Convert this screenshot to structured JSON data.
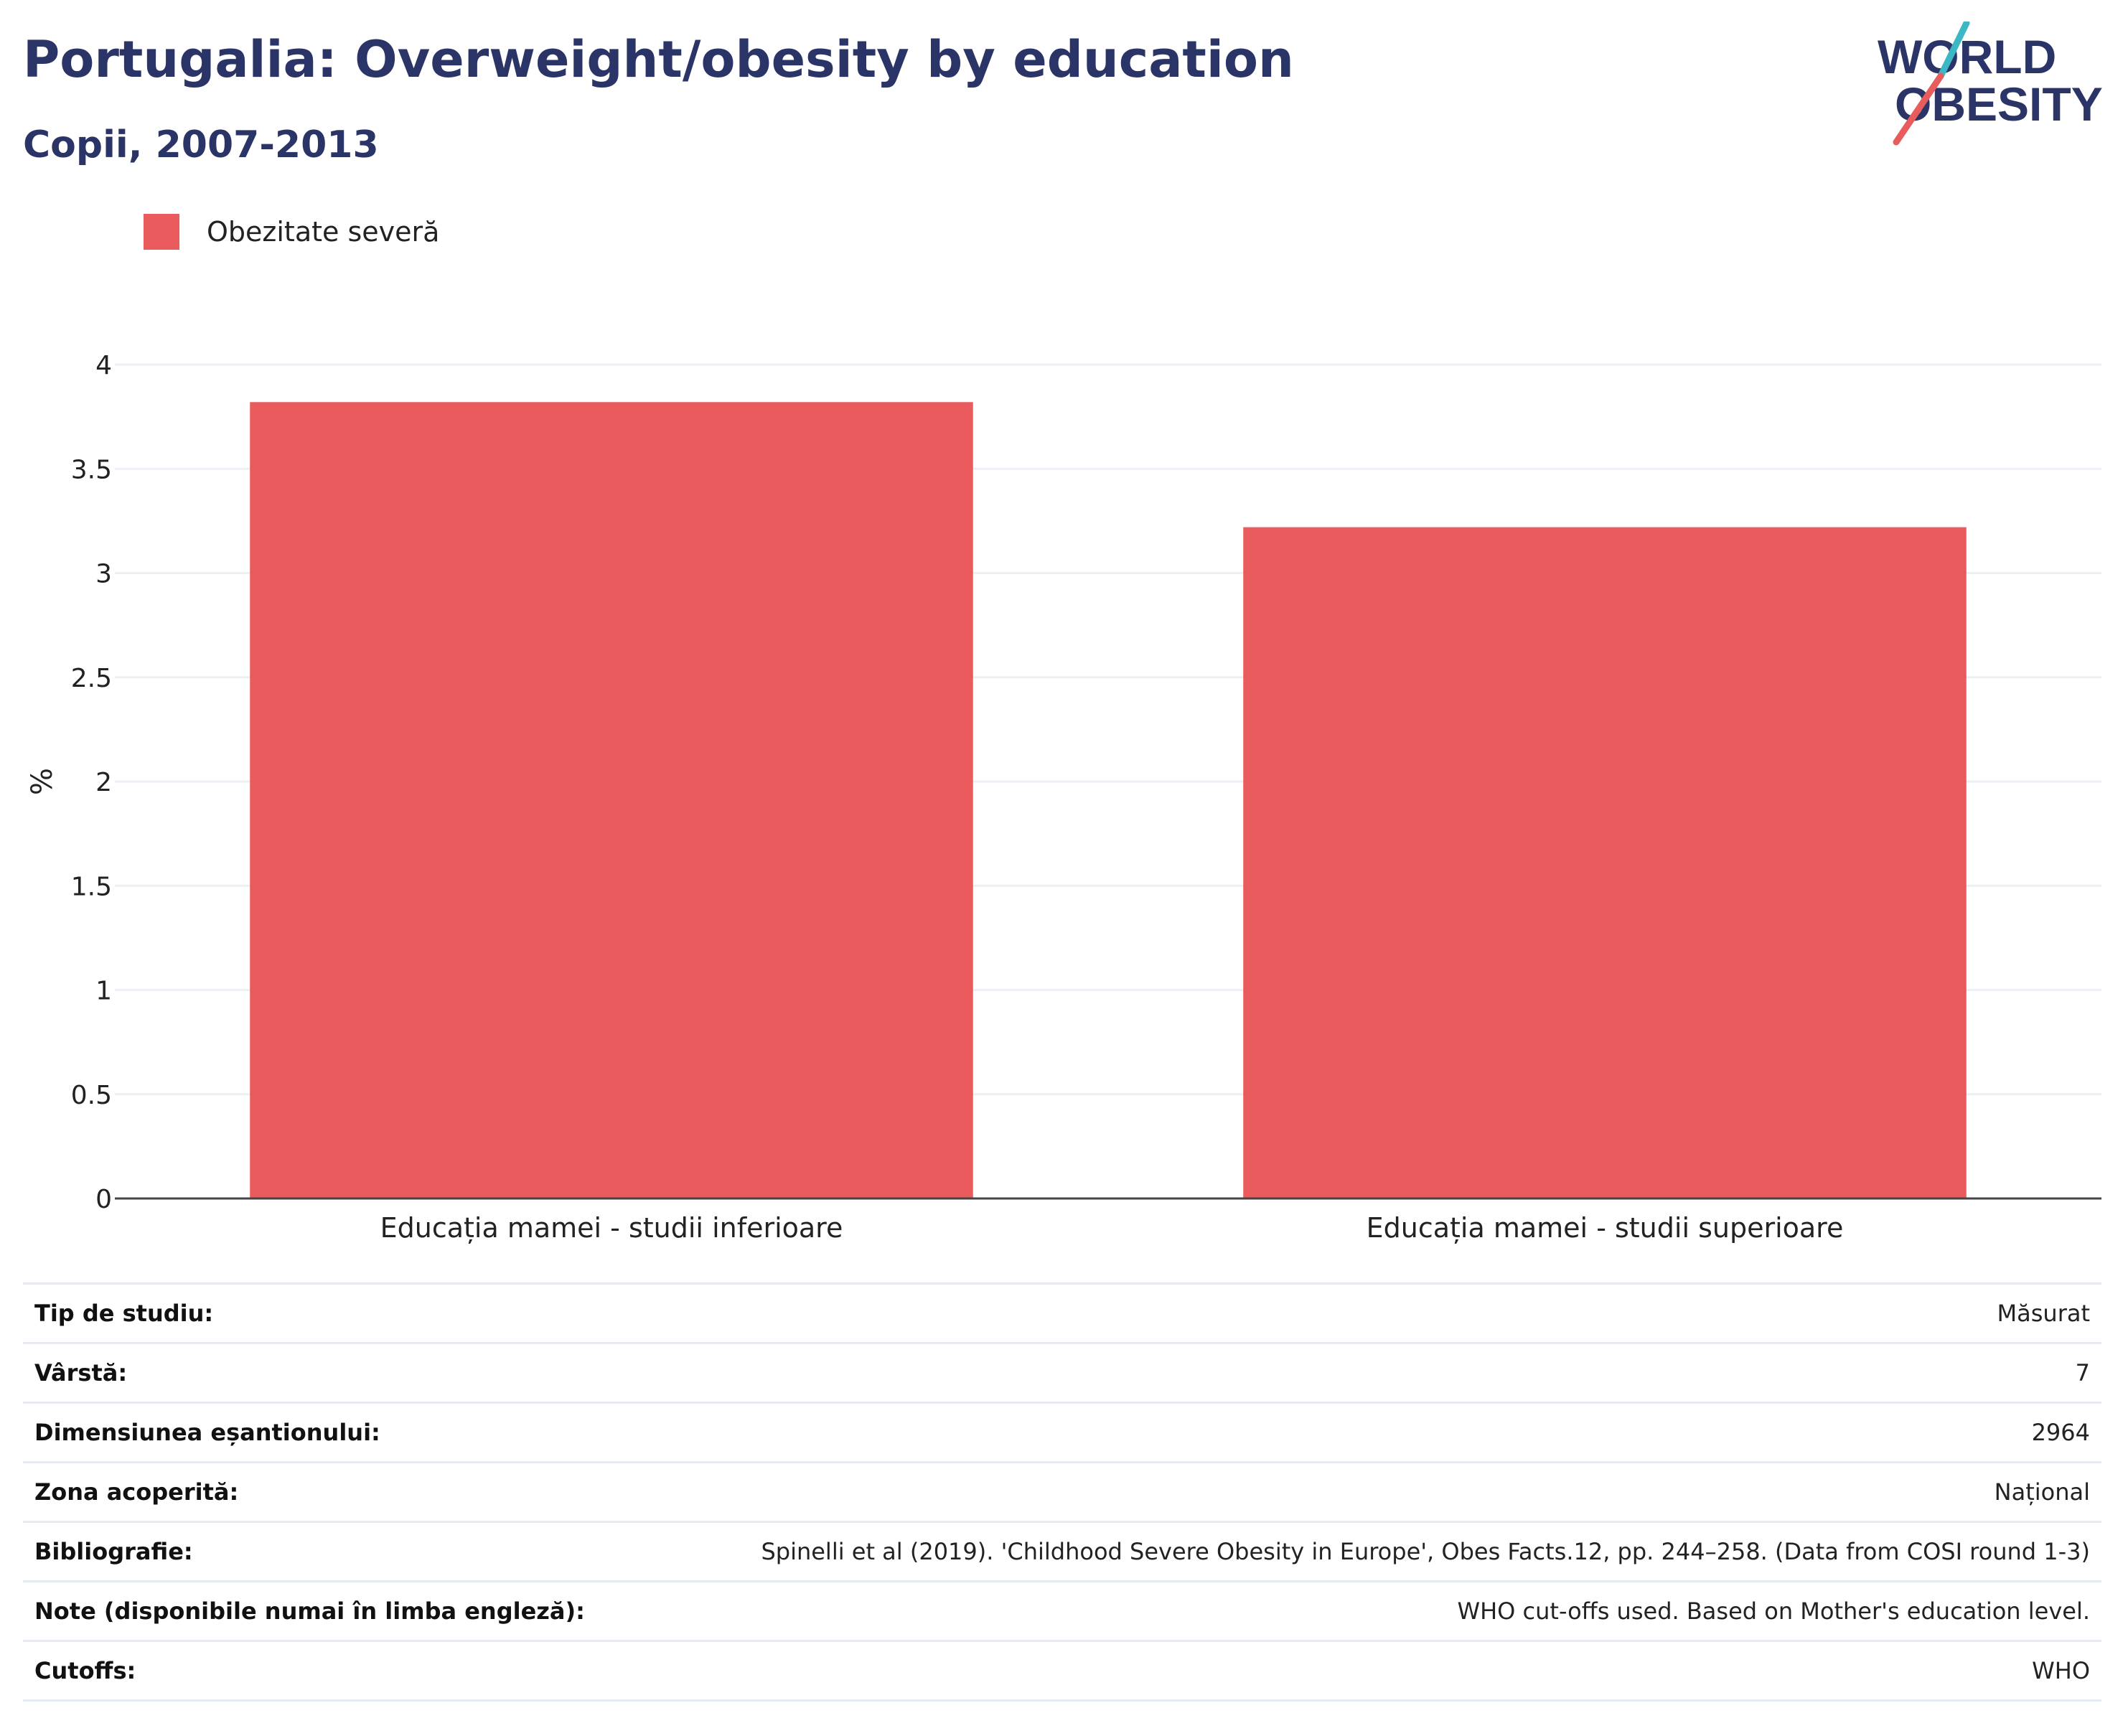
{
  "header": {
    "title": "Portugalia: Overweight/obesity by education",
    "subtitle": "Copii, 2007-2013"
  },
  "logo": {
    "line1": "WORLD",
    "line2": "OBESITY",
    "text_color": "#2b3467",
    "slash_top_color": "#3bb8c4",
    "slash_bottom_color": "#e85c5c"
  },
  "chart_data": {
    "type": "bar",
    "categories": [
      "Educația mamei - studii inferioare",
      "Educația mamei - studii superioare"
    ],
    "series": [
      {
        "name": "Obezitate severă",
        "color": "#e95b5c",
        "values": [
          3.82,
          3.22
        ]
      }
    ],
    "ylabel": "%",
    "ylim": [
      0,
      4
    ],
    "yticks": [
      "0",
      "0.5",
      "1",
      "1.5",
      "2",
      "2.5",
      "3",
      "3.5",
      "4"
    ],
    "grid": true,
    "legend_position": "top-left"
  },
  "info": [
    {
      "label": "Tip de studiu:",
      "value": "Măsurat"
    },
    {
      "label": "Vârstă:",
      "value": "7"
    },
    {
      "label": "Dimensiunea eșantionului:",
      "value": "2964"
    },
    {
      "label": "Zona acoperită:",
      "value": "Național"
    },
    {
      "label": "Bibliografie:",
      "value": "Spinelli et al (2019). 'Childhood Severe Obesity in Europe', Obes Facts.12, pp. 244–258. (Data from COSI round 1-3)"
    },
    {
      "label": "Note (disponibile numai în limba engleză):",
      "value": "WHO cut-offs used. Based on Mother's education level."
    },
    {
      "label": "Cutoffs:",
      "value": "WHO"
    }
  ]
}
